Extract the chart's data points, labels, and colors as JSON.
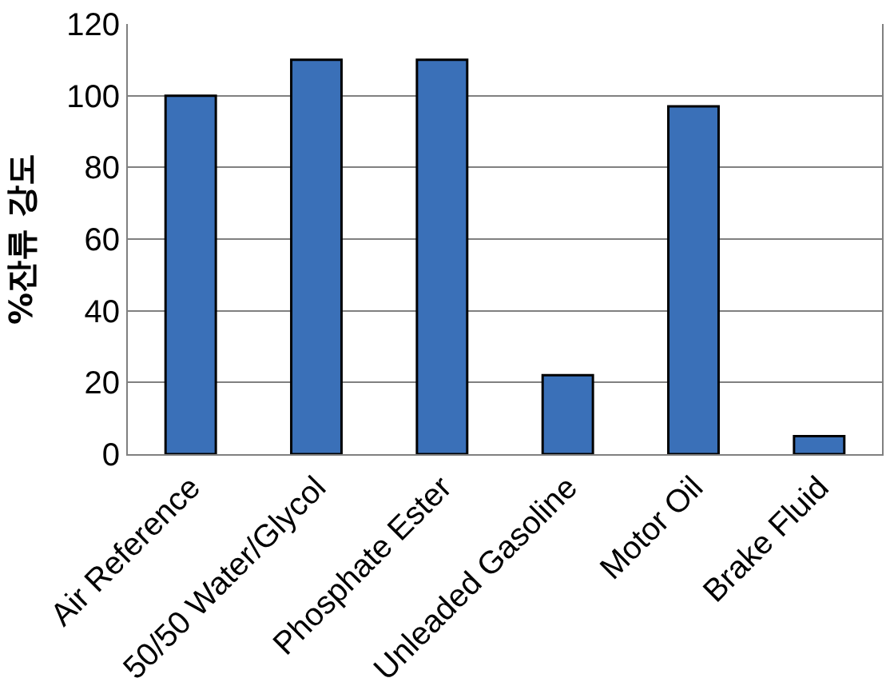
{
  "chart_data": {
    "type": "bar",
    "ylabel": "%잔류 강도",
    "categories": [
      "Air Reference",
      "50/50 Water/Glycol",
      "Phosphate Ester",
      "Unleaded Gasoline",
      "Motor Oil",
      "Brake Fluid"
    ],
    "values": [
      100,
      110,
      110,
      22,
      97,
      5
    ],
    "color": "#3a70b8",
    "ylim": [
      0,
      120
    ],
    "yticks": [
      0,
      20,
      40,
      60,
      80,
      100,
      120
    ],
    "grid": "y",
    "legend": false
  }
}
